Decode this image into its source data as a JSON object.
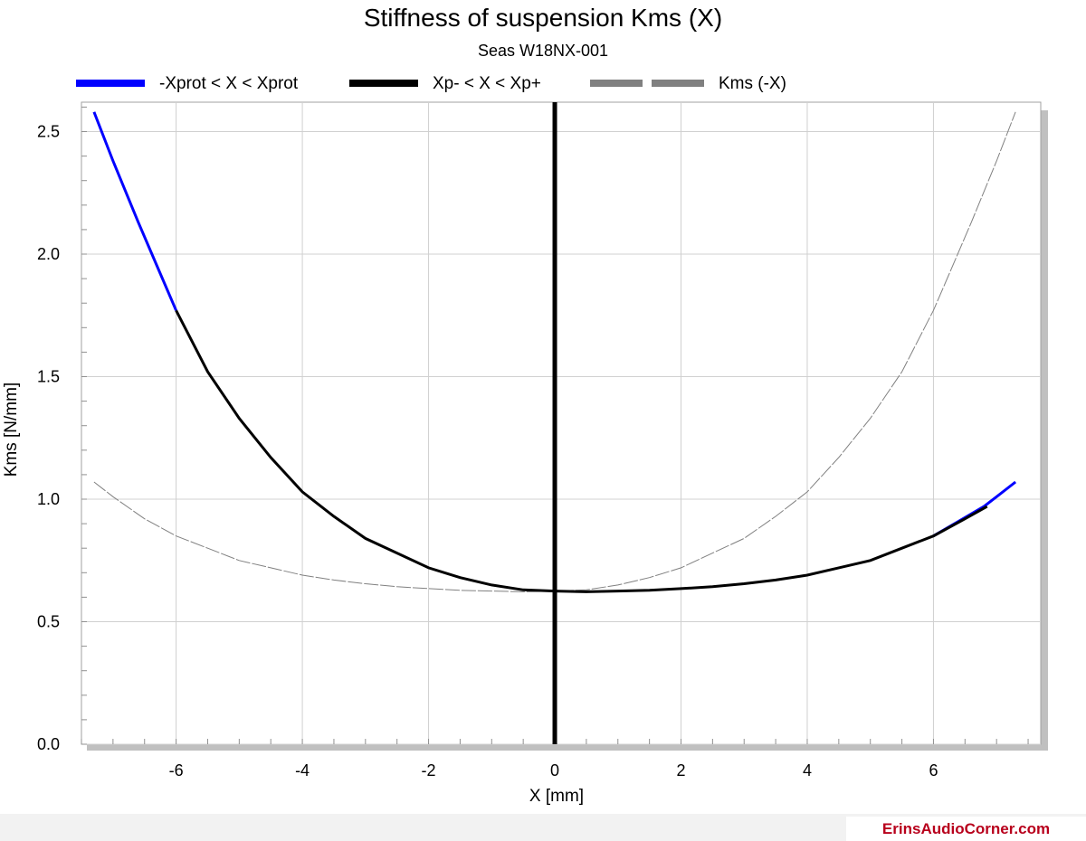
{
  "chart_data": {
    "type": "line",
    "title": "Stiffness of suspension Kms (X)",
    "subtitle": "Seas W18NX-001",
    "xlabel": "X [mm]",
    "ylabel": "Kms [N/mm]",
    "xlim": [
      -7.5,
      7.7
    ],
    "ylim": [
      0,
      2.62
    ],
    "xticks": [
      -6,
      -4,
      -2,
      0,
      2,
      4,
      6
    ],
    "yticks": [
      0.0,
      0.5,
      1.0,
      1.5,
      2.0,
      2.5
    ],
    "xtick_labels": [
      "-6",
      "-4",
      "-2",
      "0",
      "2",
      "4",
      "6"
    ],
    "ytick_labels": [
      "0.0",
      "0.5",
      "1.0",
      "1.5",
      "2.0",
      "2.5"
    ],
    "grid": true,
    "legend_position": "top",
    "vertical_marker_x": 0,
    "series": [
      {
        "name": "-Xprot < X < Xprot",
        "color": "#0000ff",
        "style": "solid",
        "x": [
          -7.3,
          -7.0,
          -6.6,
          -6.3,
          -6.0,
          6.0,
          6.4,
          6.8,
          7.0,
          7.3
        ],
        "y": [
          2.58,
          2.38,
          2.13,
          1.95,
          1.77,
          0.85,
          0.91,
          0.97,
          1.01,
          1.07
        ]
      },
      {
        "name": "Xp- < X < Xp+",
        "color": "#000000",
        "style": "solid",
        "x": [
          -6.0,
          -5.5,
          -5.0,
          -4.5,
          -4.0,
          -3.5,
          -3.0,
          -2.5,
          -2.0,
          -1.5,
          -1.0,
          -0.5,
          0.0,
          0.5,
          1.0,
          1.5,
          2.0,
          2.5,
          3.0,
          3.5,
          4.0,
          4.5,
          5.0,
          5.5,
          6.0,
          6.5,
          6.85
        ],
        "y": [
          1.77,
          1.52,
          1.33,
          1.17,
          1.03,
          0.93,
          0.84,
          0.78,
          0.72,
          0.68,
          0.65,
          0.63,
          0.625,
          0.622,
          0.625,
          0.628,
          0.635,
          0.643,
          0.655,
          0.67,
          0.69,
          0.72,
          0.75,
          0.8,
          0.85,
          0.92,
          0.97
        ]
      },
      {
        "name": "Kms (-X)",
        "color": "#808080",
        "style": "dashed",
        "x": [
          -7.3,
          -7.0,
          -6.5,
          -6.0,
          -5.5,
          -5.0,
          -4.5,
          -4.0,
          -3.5,
          -3.0,
          -2.5,
          -2.0,
          -1.5,
          -1.0,
          -0.5,
          0.0,
          0.5,
          1.0,
          1.5,
          2.0,
          2.5,
          3.0,
          3.5,
          4.0,
          4.5,
          5.0,
          5.5,
          6.0,
          6.3,
          6.6,
          7.0,
          7.3
        ],
        "y": [
          1.07,
          1.01,
          0.92,
          0.85,
          0.8,
          0.75,
          0.72,
          0.69,
          0.67,
          0.655,
          0.643,
          0.635,
          0.628,
          0.625,
          0.622,
          0.625,
          0.63,
          0.65,
          0.68,
          0.72,
          0.78,
          0.84,
          0.93,
          1.03,
          1.17,
          1.33,
          1.52,
          1.77,
          1.95,
          2.13,
          2.38,
          2.58
        ]
      }
    ]
  },
  "footer": {
    "brand": "ErinsAudioCorner.com"
  }
}
